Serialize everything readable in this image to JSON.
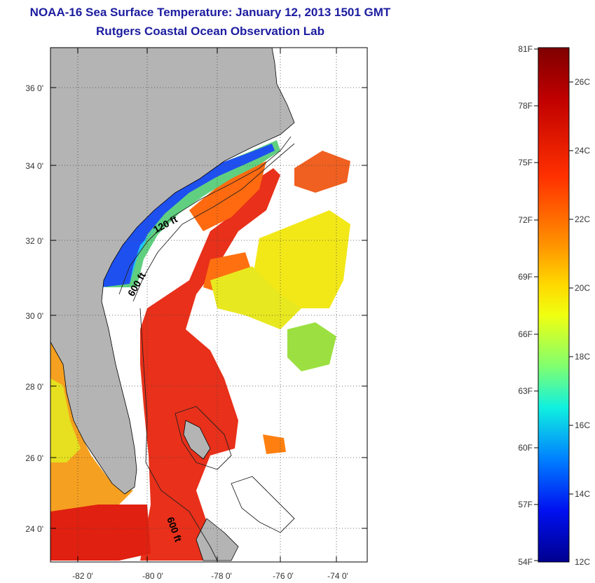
{
  "header": {
    "title": "NOAA-16 Sea Surface Temperature:  January 12, 2013 1501 GMT",
    "subtitle": "Rutgers Coastal Ocean Observation Lab"
  },
  "map": {
    "lon_ticks": [
      "-82 0'",
      "-80 0'",
      "-78 0'",
      "-76 0'",
      "-74 0'"
    ],
    "lat_ticks": [
      "36 0'",
      "34 0'",
      "32 0'",
      "30 0'",
      "28 0'",
      "26 0'",
      "24 0'"
    ],
    "contour_labels": [
      "120 ft",
      "600 ft",
      "600 ft"
    ],
    "colors": {
      "land": "#b4b4b4",
      "frame": "#000000",
      "grid": "#444444"
    }
  },
  "colorbar": {
    "f_labels": [
      "81F",
      "78F",
      "75F",
      "72F",
      "69F",
      "66F",
      "63F",
      "60F",
      "57F",
      "54F"
    ],
    "c_labels": [
      "26C",
      "24C",
      "22C",
      "20C",
      "18C",
      "16C",
      "14C",
      "12C"
    ],
    "colors": [
      "#7f0000",
      "#d70000",
      "#ff4f00",
      "#ffbf00",
      "#e9ff15",
      "#64ff93",
      "#00e9ff",
      "#0060ff",
      "#0000e6",
      "#00008f"
    ]
  }
}
